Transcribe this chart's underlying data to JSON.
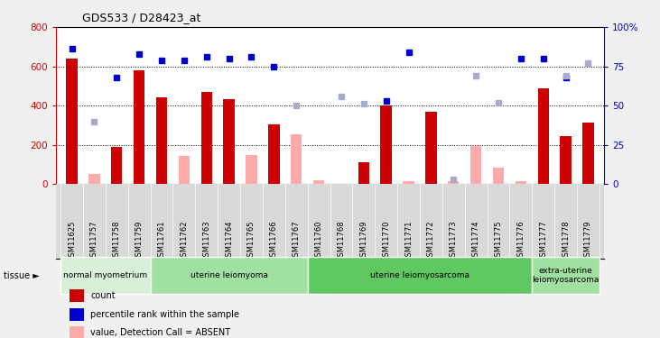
{
  "title": "GDS533 / D28423_at",
  "samples": [
    "GSM11625",
    "GSM11757",
    "GSM11758",
    "GSM11759",
    "GSM11761",
    "GSM11762",
    "GSM11763",
    "GSM11764",
    "GSM11765",
    "GSM11766",
    "GSM11767",
    "GSM11760",
    "GSM11768",
    "GSM11769",
    "GSM11770",
    "GSM11771",
    "GSM11772",
    "GSM11773",
    "GSM11774",
    "GSM11775",
    "GSM11776",
    "GSM11777",
    "GSM11778",
    "GSM11779"
  ],
  "count_values": [
    640,
    0,
    190,
    580,
    440,
    0,
    470,
    435,
    0,
    305,
    0,
    0,
    0,
    110,
    400,
    0,
    370,
    0,
    0,
    0,
    0,
    490,
    245,
    315
  ],
  "count_absent": [
    0,
    50,
    0,
    0,
    0,
    145,
    0,
    0,
    150,
    0,
    255,
    20,
    0,
    0,
    0,
    15,
    0,
    15,
    195,
    85,
    15,
    0,
    0,
    0
  ],
  "rank_values": [
    86,
    0,
    68,
    83,
    79,
    79,
    81,
    80,
    81,
    75,
    0,
    0,
    0,
    0,
    53,
    84,
    0,
    0,
    0,
    0,
    80,
    80,
    68,
    0
  ],
  "rank_absent": [
    0,
    40,
    0,
    0,
    0,
    0,
    0,
    0,
    0,
    0,
    50,
    0,
    56,
    51,
    0,
    0,
    0,
    3,
    69,
    52,
    0,
    0,
    69,
    77
  ],
  "groups": [
    {
      "label": "normal myometrium",
      "start": 0,
      "end": 4,
      "color": "#d8f0d8"
    },
    {
      "label": "uterine leiomyoma",
      "start": 4,
      "end": 11,
      "color": "#a0e0a0"
    },
    {
      "label": "uterine leiomyosarcoma",
      "start": 11,
      "end": 21,
      "color": "#60c860"
    },
    {
      "label": "extra-uterine\nleiomyosarcoma",
      "start": 21,
      "end": 24,
      "color": "#a0e0a0"
    }
  ],
  "ylim": [
    0,
    800
  ],
  "y2lim": [
    0,
    100
  ],
  "yticks": [
    0,
    200,
    400,
    600,
    800
  ],
  "y2ticks": [
    0,
    25,
    50,
    75,
    100
  ],
  "bar_width": 0.5,
  "count_color": "#cc0000",
  "count_absent_color": "#ffaaaa",
  "rank_color": "#0000cc",
  "rank_absent_color": "#aaaacc",
  "bg_color": "#d9d9d9",
  "plot_bg": "#ffffff",
  "fig_bg": "#f0f0f0"
}
